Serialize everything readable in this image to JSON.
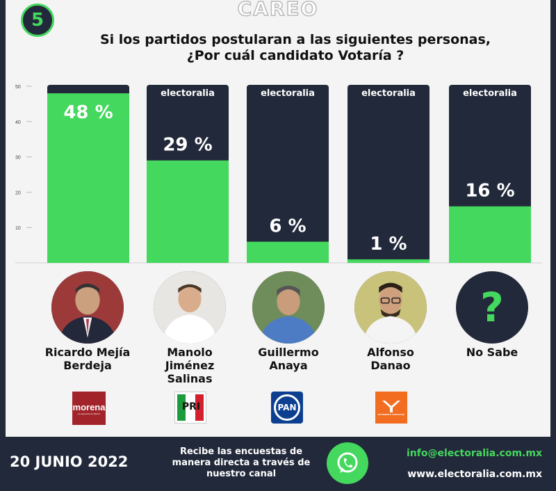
{
  "badge_number": "5",
  "header_title": "CAREO",
  "question_line1": "Si los partidos postularan a las siguientes personas,",
  "question_line2": "¿Por cuál candidato Votaría ?",
  "brand": "electoralia",
  "colors": {
    "dark": "#22293a",
    "green": "#44d85e"
  },
  "chart_data": {
    "type": "bar",
    "categories": [
      "Ricardo Mejía Berdeja",
      "Manolo Jiménez Salinas",
      "Guillermo Anaya",
      "Alfonso Danao",
      "No Sabe"
    ],
    "values": [
      48,
      29,
      6,
      1,
      16
    ],
    "value_labels": [
      "48 %",
      "29 %",
      "6 %",
      "1 %",
      "16 %"
    ],
    "y_ticks": [
      10,
      20,
      30,
      40,
      50
    ],
    "ylim": [
      0,
      50
    ],
    "grid": false
  },
  "candidates": [
    {
      "name_lines": [
        "Ricardo Mejía",
        "Berdeja"
      ],
      "party": "morena",
      "party_sub": "La esperanza de México"
    },
    {
      "name_lines": [
        "Manolo",
        "Jiménez",
        "Salinas"
      ],
      "party": "PRI"
    },
    {
      "name_lines": [
        "Guillermo",
        "Anaya"
      ],
      "party": "PAN"
    },
    {
      "name_lines": [
        "Alfonso",
        "Danao"
      ],
      "party": "MOVIMIENTO CIUDADANO"
    },
    {
      "name_lines": [
        "No Sabe"
      ],
      "party": "",
      "placeholder_symbol": "?"
    }
  ],
  "footer": {
    "date": "20 JUNIO 2022",
    "channel_text": [
      "Recibe las encuestas de",
      "manera directa a través de",
      "nuestro canal"
    ],
    "email": "info@electoralia.com.mx",
    "website": "www.electoralia.com.mx"
  }
}
